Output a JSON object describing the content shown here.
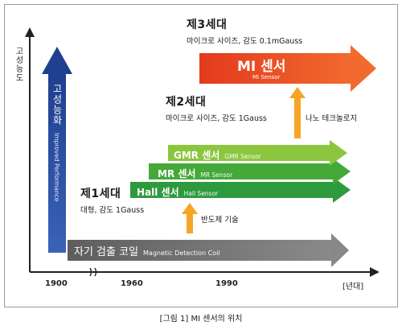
{
  "axis": {
    "y_label": "고성능도",
    "x_unit": "[년대]",
    "years": [
      "1900",
      "1960",
      "1990"
    ]
  },
  "vertical_arrow": {
    "label_ko": "고성능화",
    "label_en": "Improved Performance",
    "color": "#2c4fa0"
  },
  "generations": {
    "gen1": {
      "title": "제1세대",
      "desc": "대형, 감도 1Gauss"
    },
    "gen2": {
      "title": "제2세대",
      "desc": "마이크로 사이즈, 감도 1Gauss"
    },
    "gen3": {
      "title": "제3세대",
      "desc": "마이크로 사이즈, 감도 0.1mGauss"
    }
  },
  "arrows": {
    "coil": {
      "ko": "자기 검출 코일",
      "en": "Magnetic Detection Coil",
      "color": "#6f6f6f"
    },
    "hall": {
      "ko": "Hall 센서",
      "en": "Hall Sensor",
      "color": "#2e9a3e"
    },
    "mr": {
      "ko": "MR 센서",
      "en": "MR Sensor",
      "color": "#45a93a"
    },
    "gmr": {
      "ko": "GMR 센서",
      "en": "GMR Sensor",
      "color": "#8cc63f"
    },
    "mi": {
      "ko": "MI 센서",
      "en": "MI Sensor",
      "color": "#ee4a22"
    }
  },
  "enablers": {
    "semiconductor": "반도체 기술",
    "nano": "나노 테크놀로지",
    "color": "#f5a623"
  },
  "caption": "[그림 1] MI 센서의 위치"
}
